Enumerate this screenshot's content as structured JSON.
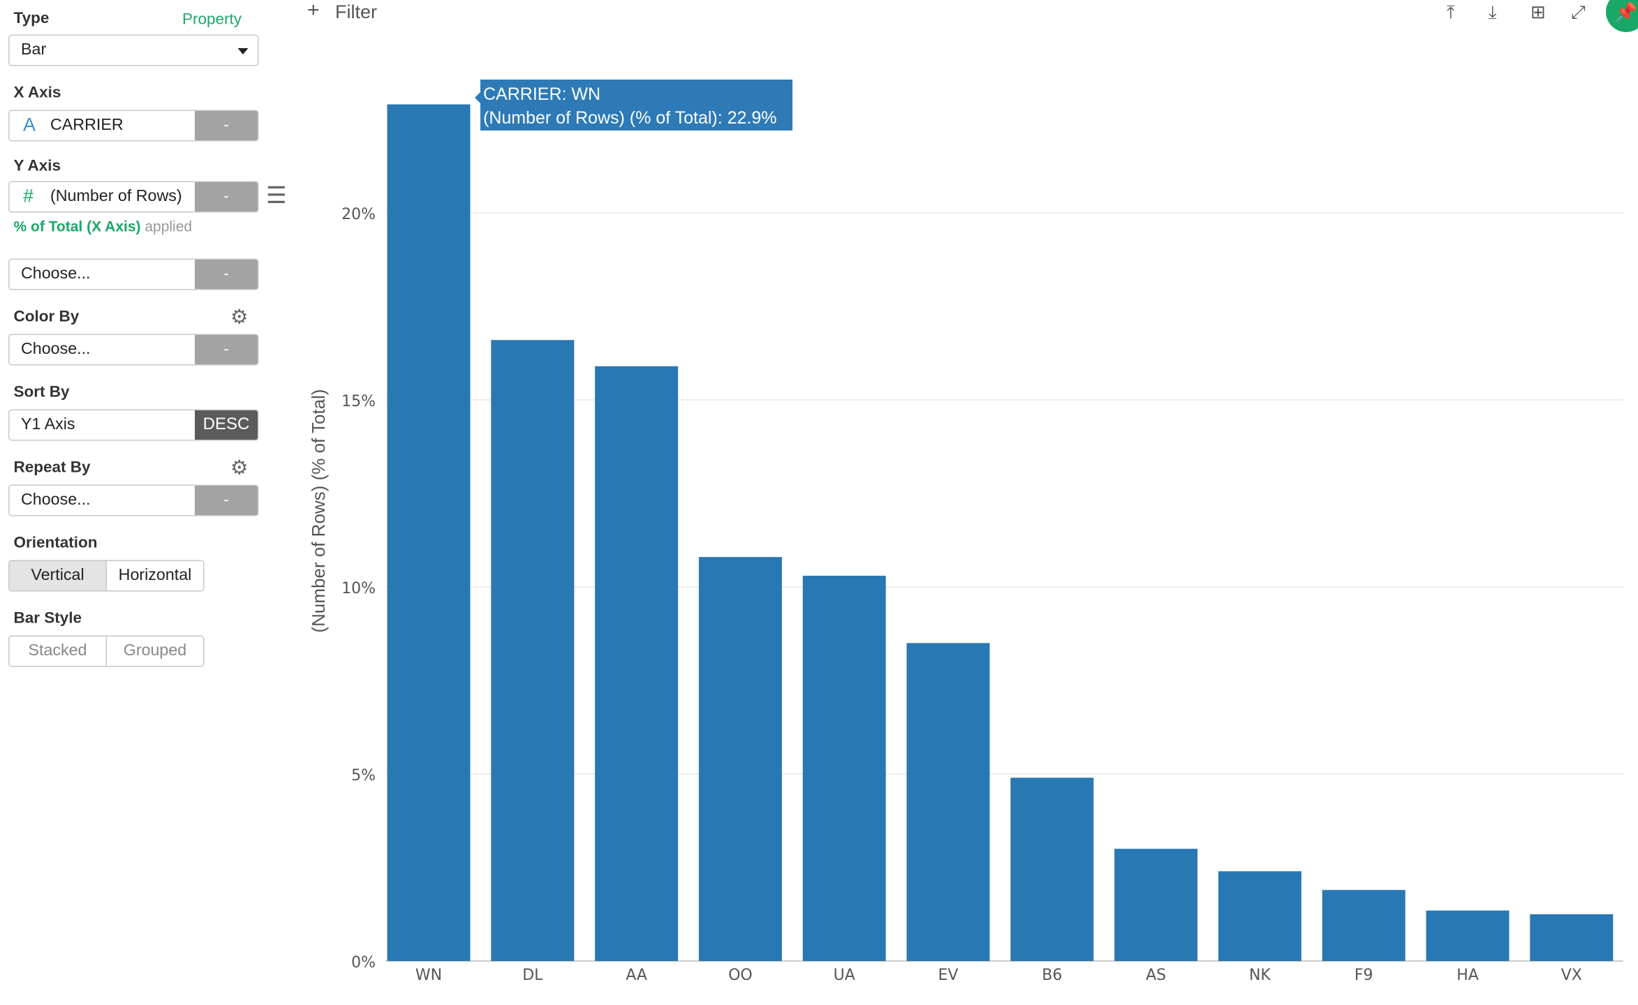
{
  "sidebar": {
    "type_label": "Type",
    "property_link": "Property",
    "type_value": "Bar",
    "x_axis_label": "X Axis",
    "x_axis_icon": "A",
    "x_axis_value": "CARRIER",
    "y_axis_label": "Y Axis",
    "y_axis_icon": "#",
    "y_axis_value": "(Number of Rows)",
    "y_applied_green": "% of Total (X Axis)",
    "y_applied_gray": "applied",
    "y2_value": "Choose...",
    "color_by_label": "Color By",
    "color_by_value": "Choose...",
    "sort_by_label": "Sort By",
    "sort_by_value": "Y1 Axis",
    "sort_order": "DESC",
    "repeat_by_label": "Repeat By",
    "repeat_by_value": "Choose...",
    "orientation_label": "Orientation",
    "orientation_vertical": "Vertical",
    "orientation_horizontal": "Horizontal",
    "bar_style_label": "Bar Style",
    "bar_style_stacked": "Stacked",
    "bar_style_grouped": "Grouped",
    "remove_label": "-"
  },
  "toolbar": {
    "filter_label": "Filter"
  },
  "tooltip": {
    "line1": "CARRIER: WN",
    "line2": "(Number of Rows) (% of Total): 22.9%"
  },
  "chart_data": {
    "type": "bar",
    "categories": [
      "WN",
      "DL",
      "AA",
      "OO",
      "UA",
      "EV",
      "B6",
      "AS",
      "NK",
      "F9",
      "HA",
      "VX"
    ],
    "values": [
      22.9,
      16.6,
      15.9,
      10.8,
      10.3,
      8.5,
      4.9,
      3.0,
      2.4,
      1.9,
      1.35,
      1.25
    ],
    "ylabel": "(Number of Rows) (% of Total)",
    "xlabel": "",
    "ylim": [
      0,
      25
    ],
    "yticks": [
      0,
      5,
      10,
      15,
      20
    ],
    "ytick_labels": [
      "0%",
      "5%",
      "10%",
      "15%",
      "20%"
    ],
    "bar_color": "#2878b4",
    "grid": true
  }
}
